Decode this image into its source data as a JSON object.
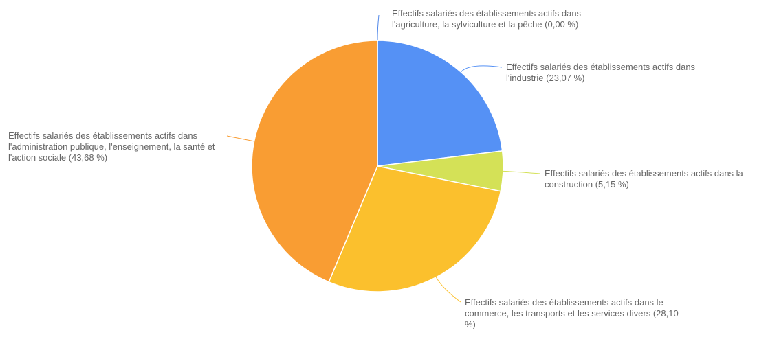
{
  "chart_data": {
    "type": "pie",
    "categories": [
      "Effectifs salariés des établissements actifs dans l'agriculture, la sylviculture et la pêche",
      "Effectifs salariés des établissements actifs dans l'industrie",
      "Effectifs salariés des établissements actifs dans la construction",
      "Effectifs salariés des établissements actifs dans le commerce, les transports et les services divers",
      "Effectifs salariés des établissements actifs dans l'administration publique, l'enseignement, la santé et l'action sociale"
    ],
    "values": [
      0.0,
      23.07,
      5.15,
      28.1,
      43.68
    ],
    "value_labels": [
      "(0,00 %)",
      "(23,07 %)",
      "(5,15 %)",
      "(28,10 %)",
      "(43,68 %)"
    ],
    "colors": [
      "#4f86e8",
      "#5591f5",
      "#d4e157",
      "#fbc02d",
      "#f99d33"
    ]
  }
}
